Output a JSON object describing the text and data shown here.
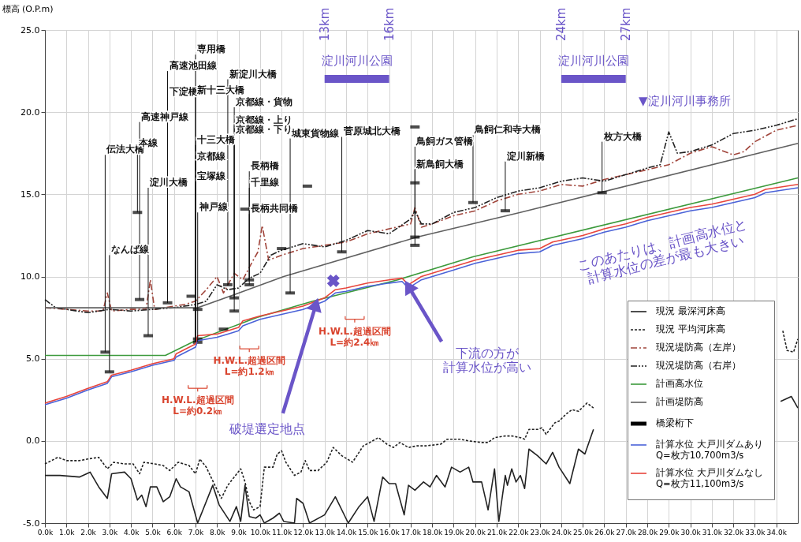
{
  "chart_data": {
    "type": "line",
    "ylabel": "標高 (O.P.m)",
    "xlim": [
      0,
      35
    ],
    "ylim": [
      -5,
      25
    ],
    "xticks": [
      {
        "value": 0,
        "label": "0.0k"
      },
      {
        "value": 1,
        "label": "1.0k"
      },
      {
        "value": 2,
        "label": "2.0k"
      },
      {
        "value": 3,
        "label": "3.0k"
      },
      {
        "value": 4,
        "label": "4.0k"
      },
      {
        "value": 5,
        "label": "5.0k"
      },
      {
        "value": 6,
        "label": "6.0k"
      },
      {
        "value": 7,
        "label": "7.0k"
      },
      {
        "value": 8,
        "label": "8.0k"
      },
      {
        "value": 9,
        "label": "9.0k"
      },
      {
        "value": 10,
        "label": "10.0k"
      },
      {
        "value": 11,
        "label": "11.0k"
      },
      {
        "value": 12,
        "label": "12.0k"
      },
      {
        "value": 13,
        "label": "13.0k"
      },
      {
        "value": 14,
        "label": "14.0k"
      },
      {
        "value": 15,
        "label": "15.0k"
      },
      {
        "value": 16,
        "label": "16.0k"
      },
      {
        "value": 17,
        "label": "17.0k"
      },
      {
        "value": 18,
        "label": "18.0k"
      },
      {
        "value": 19,
        "label": "19.0k"
      },
      {
        "value": 20,
        "label": "20.0k"
      },
      {
        "value": 21,
        "label": "21.0k"
      },
      {
        "value": 22,
        "label": "22.0k"
      },
      {
        "value": 23,
        "label": "23.0k"
      },
      {
        "value": 24,
        "label": "24.0k"
      },
      {
        "value": 25,
        "label": "25.0k"
      },
      {
        "value": 26,
        "label": "26.0k"
      },
      {
        "value": 27,
        "label": "27.0k"
      },
      {
        "value": 28,
        "label": "28.0k"
      },
      {
        "value": 29,
        "label": "29.0k"
      },
      {
        "value": 30,
        "label": "30.0k"
      },
      {
        "value": 31,
        "label": "31.0k"
      },
      {
        "value": 32,
        "label": "32.0k"
      },
      {
        "value": 33,
        "label": "33.0k"
      },
      {
        "value": 34,
        "label": "34.0k"
      }
    ],
    "yticks": [
      {
        "value": -5,
        "label": "-5.0"
      },
      {
        "value": 0,
        "label": "0.0"
      },
      {
        "value": 5,
        "label": "5.0"
      },
      {
        "value": 10,
        "label": "10.0"
      },
      {
        "value": 15,
        "label": "15.0"
      },
      {
        "value": 20,
        "label": "20.0"
      },
      {
        "value": 25,
        "label": "25.0"
      }
    ],
    "grid": true,
    "legend": "bottom right",
    "series": [
      {
        "name": "現況 最深河床高",
        "color": "#222222",
        "line_style": "solid",
        "x": [
          0,
          0.7,
          1.6,
          2.1,
          2.5,
          2.9,
          3.1,
          3.7,
          4.0,
          4.3,
          4.5,
          4.7,
          4.9,
          5.2,
          5.5,
          5.8,
          6.1,
          6.3,
          6.7,
          7.1,
          7.8,
          8.1,
          8.6,
          8.9,
          9.1,
          9.3,
          9.5,
          9.8,
          10.0,
          10.2,
          10.6,
          10.9,
          11.1,
          11.6,
          11.7,
          12.0,
          12.3,
          13.0,
          13.5,
          14.1,
          14.6,
          15.0,
          15.3,
          15.7,
          16.0,
          16.3,
          16.7,
          16.9,
          17.2,
          17.6,
          17.9,
          18.2,
          18.6,
          18.9,
          19.3,
          19.7,
          19.9,
          20.3,
          20.6,
          20.9,
          21.1,
          21.4,
          21.5,
          21.7,
          21.9,
          22.1,
          22.3,
          22.5,
          22.9,
          23.3,
          23.6,
          23.9,
          24.4,
          24.8,
          25.1,
          25.5
        ],
        "values": [
          -2.1,
          -2.1,
          -2.2,
          -1.9,
          -2.8,
          -3.5,
          -2.0,
          -1.9,
          -2.3,
          -3.6,
          -3.3,
          -4.0,
          -2.8,
          -2.8,
          -3.7,
          -3.4,
          -2.3,
          -2.8,
          -3.1,
          -5.0,
          -2.7,
          -3.9,
          -4.9,
          -4.0,
          -4.9,
          -2.7,
          -4.6,
          -4.7,
          -4.5,
          -5.0,
          -4.7,
          -4.4,
          -4.9,
          -5.0,
          -3.5,
          -3.8,
          -5.0,
          -4.5,
          -3.4,
          -5.0,
          -4.0,
          -3.4,
          -4.9,
          -2.2,
          -2.6,
          -2.6,
          -4.5,
          -2.7,
          -3.0,
          -2.5,
          -2.8,
          -2.1,
          -2.8,
          -1.6,
          -1.9,
          -1.6,
          -2.5,
          -2.5,
          -4.2,
          -1.7,
          -4.9,
          -2.1,
          -2.7,
          -1.7,
          -2.5,
          -2.1,
          -2.9,
          -0.5,
          -0.9,
          -1.4,
          -0.7,
          -1.6,
          -2.6,
          -0.5,
          -0.8,
          0.7
        ]
      },
      {
        "color": "#222222",
        "line_style": "solid",
        "x": [
          34.2,
          34.7,
          35
        ],
        "values": [
          2.4,
          2.7,
          2.0
        ]
      },
      {
        "name": "現況 平均河床高",
        "color": "#222222",
        "line_style": "dashed",
        "x": [
          0,
          0.6,
          1.0,
          1.6,
          2.0,
          2.5,
          2.9,
          3.2,
          3.7,
          4.1,
          4.4,
          4.6,
          5.1,
          5.5,
          5.8,
          6.2,
          6.7,
          7.0,
          7.2,
          7.5,
          7.9,
          8.2,
          8.5,
          8.8,
          9.1,
          9.3,
          9.5,
          9.7,
          10.0,
          10.2,
          10.6,
          10.8,
          11.0,
          11.2,
          11.6,
          11.9,
          12.1,
          12.3,
          12.7,
          13.1,
          13.4,
          13.8,
          14.3,
          14.8,
          15.1,
          15.5,
          15.9,
          16.2,
          16.5,
          16.9,
          17.3,
          17.7,
          18.4,
          18.7,
          19.3,
          19.7,
          20.3,
          20.6,
          20.9,
          21.4,
          21.7,
          22.1,
          22.3,
          22.5,
          22.9,
          23.1,
          23.3,
          23.7,
          23.9,
          24.2,
          24.5,
          24.8,
          25.2,
          25.5
        ],
        "values": [
          -1.4,
          -1.0,
          -1.2,
          -1.2,
          -1.1,
          -1.0,
          -1.7,
          -1.3,
          -1.4,
          -1.4,
          -2.0,
          -1.3,
          -1.4,
          -1.5,
          -1.8,
          -1.3,
          -1.5,
          -2.0,
          -1.1,
          -1.6,
          -2.7,
          -3.5,
          -2.7,
          -2.2,
          -1.7,
          -2.5,
          -3.7,
          -4.2,
          -4.0,
          -1.6,
          -1.6,
          -0.8,
          -0.6,
          -1.3,
          -2.1,
          -1.9,
          -1.2,
          -1.8,
          -1.8,
          -1.3,
          -0.4,
          -0.9,
          -1.3,
          -0.3,
          -0.1,
          0.2,
          -0.2,
          -0.4,
          -0.1,
          -0.4,
          -0.3,
          -0.3,
          -0.2,
          0.1,
          0.1,
          0.0,
          -0.1,
          -0.1,
          0.2,
          0.3,
          0.3,
          0.2,
          0.1,
          0.7,
          0.7,
          0.8,
          0.4,
          1.1,
          1.2,
          1.6,
          1.9,
          1.8,
          2.3,
          2.0
        ]
      },
      {
        "color": "#222222",
        "line_style": "dashed",
        "x": [
          34.3,
          34.5,
          34.8,
          35
        ],
        "values": [
          6.7,
          5.5,
          5.4,
          6.2
        ]
      },
      {
        "name": "現況堤防高（左岸）",
        "color": "#a0443a",
        "line_style": "dashdot",
        "x": [
          0,
          1,
          2,
          2.7,
          2.9,
          3.1,
          4,
          4.7,
          4.9,
          5.1,
          6,
          6.5,
          7,
          7.5,
          8,
          8.3,
          8.8,
          9.2,
          9.6,
          9.9,
          10.1,
          10.4,
          11,
          12,
          13,
          14,
          15,
          16,
          17,
          17.2,
          17.5,
          18,
          19,
          20,
          21,
          22,
          23,
          24,
          25,
          26,
          27,
          28,
          29,
          30,
          31,
          32,
          32.5,
          33,
          34,
          35
        ],
        "values": [
          8.1,
          8.0,
          7.9,
          7.9,
          9.0,
          7.9,
          8.0,
          8.0,
          9.8,
          8.0,
          8.2,
          8.3,
          8.5,
          9.2,
          10.0,
          9.0,
          10.2,
          9.8,
          10.8,
          11.5,
          13.1,
          11.0,
          11.3,
          11.7,
          11.9,
          12.1,
          12.6,
          12.9,
          13.2,
          14.2,
          13.0,
          13.2,
          13.7,
          14.0,
          14.6,
          15.0,
          15.2,
          15.6,
          15.5,
          15.9,
          16.2,
          16.5,
          16.8,
          17.5,
          17.9,
          17.4,
          17.6,
          18.2,
          18.9,
          19.2
        ]
      },
      {
        "name": "現況堤防高（右岸）",
        "color": "#222222",
        "line_style": "dashdotdot",
        "x": [
          0,
          0.5,
          1,
          2,
          3,
          4,
          5,
          6,
          7,
          7.5,
          8,
          8.5,
          9,
          9.5,
          10,
          10.5,
          11,
          12,
          13,
          14,
          15,
          16,
          17,
          17.2,
          17.5,
          18,
          19,
          20,
          21,
          22,
          23,
          24,
          25,
          26,
          27,
          28,
          28.6,
          29,
          29.4,
          30,
          31,
          32,
          33,
          34,
          35
        ],
        "values": [
          8.6,
          8.1,
          8.0,
          7.8,
          8.0,
          7.9,
          8.0,
          8.1,
          8.3,
          8.5,
          9.5,
          9.2,
          9.3,
          9.9,
          10.2,
          11.3,
          11.6,
          12.0,
          11.8,
          12.2,
          12.8,
          12.6,
          13.5,
          14.0,
          13.2,
          13.2,
          13.9,
          14.2,
          14.8,
          15.2,
          15.4,
          15.8,
          16.0,
          15.8,
          16.2,
          16.6,
          16.8,
          18.8,
          17.5,
          17.6,
          18.0,
          18.7,
          18.9,
          19.2,
          19.6
        ]
      },
      {
        "name": "計画高水位",
        "color": "#3c9a3c",
        "line_style": "solid",
        "x": [
          0,
          5.6,
          7.0,
          9.85,
          12.45,
          16.4,
          19.9,
          35
        ],
        "values": [
          5.2,
          5.2,
          6.1,
          7.5,
          8.5,
          9.8,
          11.2,
          16.0
        ]
      },
      {
        "name": "計画堤防高",
        "color": "#606060",
        "line_style": "solid",
        "x": [
          0,
          7.1,
          8.8,
          11.1,
          17.3,
          22.1,
          35
        ],
        "values": [
          8.1,
          8.1,
          8.9,
          10.0,
          12.4,
          13.9,
          18.1
        ]
      },
      {
        "name": "橋梁桁下",
        "color": "#000000",
        "type": "scatter",
        "x": [
          2.8,
          3.0,
          4.3,
          4.4,
          4.8,
          5.7,
          6.8,
          7.1,
          7.1,
          7.1,
          8.3,
          8.5,
          8.8,
          8.8,
          9.3,
          9.5,
          9.5,
          11.0,
          11.4,
          12.2,
          13.8,
          17.2,
          17.2,
          17.2,
          17.2,
          19.9,
          21.4,
          25.9
        ],
        "values": [
          5.4,
          4.2,
          13.9,
          8.6,
          6.4,
          8.4,
          8.8,
          8.0,
          6.2,
          6.0,
          6.8,
          9.5,
          8.7,
          7.9,
          14.1,
          9.5,
          9.8,
          11.7,
          9.0,
          15.5,
          11.5,
          19.1,
          15.7,
          12.4,
          11.9,
          14.5,
          14.0,
          15.1
        ]
      },
      {
        "name": "計算水位 大戸川ダムあり Q=枚方10,700m3/s",
        "color": "#4a62d8",
        "line_style": "solid",
        "x": [
          0,
          1,
          2,
          2.9,
          3.1,
          4,
          5,
          6,
          6.1,
          7,
          7.1,
          8,
          8.5,
          9,
          9.2,
          10,
          11,
          12,
          13,
          13.5,
          14,
          15,
          16,
          16.6,
          16.9,
          17.5,
          19,
          20,
          21,
          22,
          23,
          23.6,
          25,
          26,
          27,
          28,
          29,
          30,
          31,
          32,
          33,
          33.5,
          35
        ],
        "values": [
          2.2,
          2.6,
          3.1,
          3.5,
          3.9,
          4.2,
          4.6,
          4.9,
          5.1,
          5.7,
          6.1,
          6.3,
          6.5,
          6.7,
          7.0,
          7.4,
          7.7,
          8.0,
          8.5,
          9.0,
          9.1,
          9.4,
          9.6,
          9.7,
          9.3,
          9.8,
          10.4,
          10.8,
          11.1,
          11.4,
          11.5,
          11.9,
          12.3,
          12.7,
          13.0,
          13.4,
          13.7,
          14.0,
          14.2,
          14.5,
          14.8,
          15.1,
          15.4
        ]
      },
      {
        "name": "計算水位 大戸川ダムなし Q=枚方11,100m3/s",
        "color": "#e8453c",
        "line_style": "solid",
        "x": [
          0,
          1,
          2,
          2.9,
          3.1,
          4,
          5,
          6,
          6.1,
          7,
          7.1,
          8,
          8.5,
          9,
          9.2,
          10,
          11,
          12,
          13,
          13.5,
          14,
          15,
          16,
          16.6,
          16.9,
          17.5,
          19,
          20,
          21,
          22,
          23,
          23.6,
          25,
          26,
          27,
          28,
          29,
          30,
          31,
          32,
          33,
          33.5,
          35
        ],
        "values": [
          2.3,
          2.7,
          3.2,
          3.6,
          4.0,
          4.3,
          4.7,
          5.0,
          5.3,
          5.9,
          6.4,
          6.5,
          6.7,
          6.9,
          7.3,
          7.6,
          7.9,
          8.2,
          8.7,
          9.2,
          9.3,
          9.6,
          9.8,
          9.9,
          9.5,
          10.0,
          10.6,
          11.0,
          11.3,
          11.6,
          11.7,
          12.1,
          12.5,
          12.9,
          13.2,
          13.6,
          13.9,
          14.2,
          14.4,
          14.7,
          15.0,
          15.3,
          15.6
        ]
      }
    ],
    "annotations": [
      {
        "text": "伝法大橋",
        "x": 2.8,
        "y": 5.4
      },
      {
        "text": "なんば線",
        "x": 3.0,
        "y": 4.2
      },
      {
        "text": "本線",
        "x": 4.3,
        "y": 13.9
      },
      {
        "text": "高速神戸線",
        "x": 4.4,
        "y": 8.6
      },
      {
        "text": "淀川大橋",
        "x": 4.8,
        "y": 6.4
      },
      {
        "text": "高速池田線",
        "x": 5.7,
        "y": 8.4
      },
      {
        "text": "下淀橋",
        "x": 5.7,
        "y": 8.4
      },
      "専用橋",
      "新十三大橋",
      "十三大橋",
      "京都線",
      "宝塚線",
      "神戸線",
      {
        "text": "新淀川大橋",
        "x": 8.5,
        "y": 9.5
      },
      {
        "text": "京都線・貨物",
        "x": 8.8,
        "y": 7.9
      },
      {
        "text": "京都線・上り",
        "x": 8.8,
        "y": 8.7
      },
      {
        "text": "京都線・下り",
        "x": 8.8,
        "y": 8.7
      },
      {
        "text": "長柄橋",
        "x": 9.5,
        "y": 9.5
      },
      {
        "text": "千里線",
        "x": 9.5,
        "y": 9.8
      },
      {
        "text": "長柄共同橋",
        "x": 9.5,
        "y": 9.8
      },
      {
        "text": "城東貨物線",
        "x": 11.4,
        "y": 9.0
      },
      {
        "text": "菅原城北大橋",
        "x": 13.8,
        "y": 11.5
      },
      {
        "text": "鳥飼ガス管橋",
        "x": 17.2,
        "y": 11.9
      },
      {
        "text": "新鳥飼大橋",
        "x": 17.2,
        "y": 12.4
      },
      {
        "text": "鳥飼仁和寺大橋",
        "x": 19.9,
        "y": 14.5
      },
      {
        "text": "淀川新橋",
        "x": 21.4,
        "y": 14.0
      },
      {
        "text": "枚方大橋",
        "x": 25.9,
        "y": 15.1
      },
      "13km",
      "16km",
      "24km",
      "27km",
      "淀川河川公園",
      "淀川河川公園",
      "▼淀川河川事務所",
      {
        "text": "破堤選定地点",
        "x": 12.6,
        "y": 8.3
      },
      {
        "text": "下流の方が計算水位が高い",
        "x": 16.9,
        "y": 9.4
      },
      "このあたりは、計画高水位と計算水位の差が最も大きい",
      "H.W.L.超過区間L=約0.2㎞",
      "H.W.L.超過区間L=約1.2㎞",
      "H.W.L.超過区間L=約2.4㎞"
    ]
  }
}
